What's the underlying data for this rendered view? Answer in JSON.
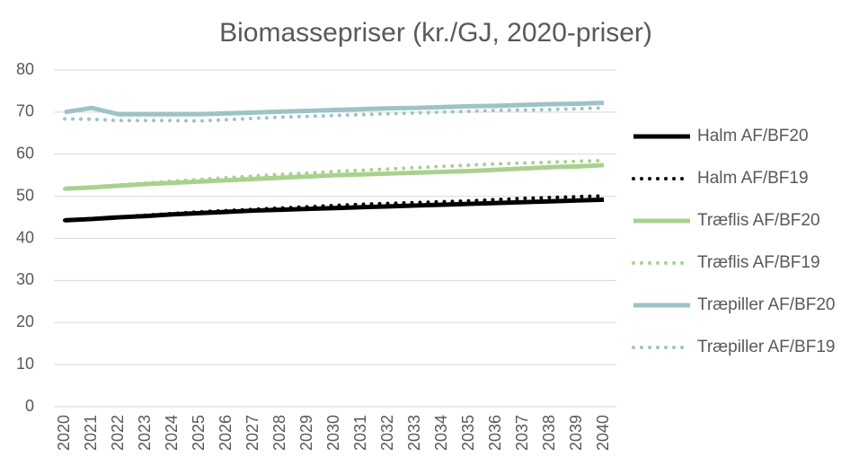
{
  "chart_data": {
    "type": "line",
    "title": "Biomassepriser (kr./GJ, 2020-priser)",
    "categories": [
      "2020",
      "2021",
      "2022",
      "2023",
      "2024",
      "2025",
      "2026",
      "2027",
      "2028",
      "2029",
      "2030",
      "2031",
      "2032",
      "2033",
      "2034",
      "2035",
      "2036",
      "2037",
      "2038",
      "2039",
      "2040"
    ],
    "series": [
      {
        "name": "Halm AF/BF20",
        "color": "#000000",
        "dash": false,
        "values": [
          44.3,
          44.6,
          45,
          45.3,
          45.7,
          46,
          46.3,
          46.6,
          46.8,
          47,
          47.2,
          47.4,
          47.6,
          47.8,
          48,
          48.2,
          48.4,
          48.6,
          48.8,
          49,
          49.2
        ]
      },
      {
        "name": "Halm AF/BF19",
        "color": "#000000",
        "dash": true,
        "values": [
          44.3,
          44.7,
          45.1,
          45.5,
          45.9,
          46.3,
          46.6,
          46.9,
          47.2,
          47.5,
          47.8,
          48.1,
          48.3,
          48.5,
          48.7,
          48.9,
          49.2,
          49.5,
          49.7,
          49.9,
          50.1
        ]
      },
      {
        "name": "Træflis AF/BF20",
        "color": "#a9d18e",
        "dash": false,
        "values": [
          51.8,
          52.1,
          52.5,
          52.9,
          53.2,
          53.5,
          53.8,
          54.1,
          54.4,
          54.7,
          55,
          55.2,
          55.4,
          55.6,
          55.8,
          56,
          56.3,
          56.6,
          56.9,
          57.1,
          57.4
        ]
      },
      {
        "name": "Træflis AF/BF19",
        "color": "#a9d18e",
        "dash": true,
        "values": [
          51.8,
          52.2,
          52.7,
          53.1,
          53.6,
          54,
          54.4,
          54.8,
          55.2,
          55.5,
          55.9,
          56.2,
          56.5,
          56.8,
          57.1,
          57.4,
          57.7,
          57.9,
          58.1,
          58.3,
          58.5
        ]
      },
      {
        "name": "Træpiller AF/BF20",
        "color": "#9dc3c6",
        "dash": false,
        "values": [
          70,
          71,
          69.5,
          69.5,
          69.5,
          69.5,
          69.7,
          69.9,
          70.1,
          70.3,
          70.5,
          70.7,
          70.9,
          71,
          71.2,
          71.4,
          71.5,
          71.7,
          71.9,
          72,
          72.2
        ]
      },
      {
        "name": "Træpiller AF/BF19",
        "color": "#9dc3c6",
        "dash": true,
        "values": [
          68.4,
          68.3,
          68,
          68,
          68,
          67.9,
          68.2,
          68.5,
          68.8,
          69,
          69.2,
          69.4,
          69.6,
          69.8,
          70,
          70.2,
          70.4,
          70.5,
          70.6,
          70.8,
          71
        ]
      }
    ],
    "ylim": [
      0,
      80
    ],
    "yticks": [
      0,
      10,
      20,
      30,
      40,
      50,
      60,
      70,
      80
    ],
    "grid": true,
    "legend": "right"
  }
}
